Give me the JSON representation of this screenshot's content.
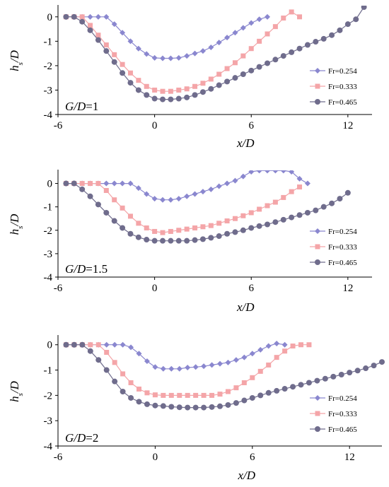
{
  "chart_data": [
    {
      "type": "line",
      "annotation": {
        "italic": "G/D",
        "rest": "=1"
      },
      "xlabel": "x/D",
      "ylabel": {
        "main": "h",
        "sub": "s",
        "rest": "/D"
      },
      "xlim": [
        -6,
        13.5
      ],
      "ylim": [
        -4,
        0.4
      ],
      "xticks": [
        -6,
        0,
        6,
        12
      ],
      "yticks": [
        0,
        -1,
        -2,
        -3,
        -4
      ],
      "series": [
        {
          "name": "Fr=0.254",
          "color": "#8a87cf",
          "marker": "diamond",
          "x": [
            -5.5,
            -5,
            -4.5,
            -4,
            -3.5,
            -3,
            -2.5,
            -2,
            -1.5,
            -1,
            -0.5,
            0,
            0.5,
            1,
            1.5,
            2,
            2.5,
            3,
            3.5,
            4,
            4.5,
            5,
            5.5,
            6,
            6.5,
            7
          ],
          "y": [
            0,
            0,
            0,
            0,
            0,
            0,
            -0.3,
            -0.65,
            -1,
            -1.3,
            -1.52,
            -1.68,
            -1.7,
            -1.7,
            -1.68,
            -1.6,
            -1.5,
            -1.4,
            -1.25,
            -1.05,
            -0.85,
            -0.65,
            -0.45,
            -0.25,
            -0.1,
            0
          ]
        },
        {
          "name": "Fr=0.333",
          "color": "#f4a5a8",
          "marker": "square",
          "x": [
            -5.5,
            -5,
            -4.5,
            -4,
            -3.5,
            -3,
            -2.5,
            -2,
            -1.5,
            -1,
            -0.5,
            0,
            0.5,
            1,
            1.5,
            2,
            2.5,
            3,
            3.5,
            4,
            4.5,
            5,
            5.5,
            6,
            6.5,
            7,
            7.5,
            8,
            8.5,
            9
          ],
          "y": [
            0,
            0,
            0,
            -0.35,
            -0.75,
            -1.15,
            -1.55,
            -1.95,
            -2.3,
            -2.6,
            -2.85,
            -3,
            -3.05,
            -3.05,
            -3,
            -2.95,
            -2.85,
            -2.72,
            -2.55,
            -2.35,
            -2.12,
            -1.88,
            -1.6,
            -1.3,
            -1,
            -0.7,
            -0.4,
            -0.05,
            0.2,
            0
          ]
        },
        {
          "name": "Fr=0.465",
          "color": "#6f6c8c",
          "marker": "circle",
          "x": [
            -5.5,
            -5,
            -4.5,
            -4,
            -3.5,
            -3,
            -2.5,
            -2,
            -1.5,
            -1,
            -0.5,
            0,
            0.5,
            1,
            1.5,
            2,
            2.5,
            3,
            3.5,
            4,
            4.5,
            5,
            5.5,
            6,
            6.5,
            7,
            7.5,
            8,
            8.5,
            9,
            9.5,
            10,
            10.5,
            11,
            11.5,
            12,
            12.5,
            13
          ],
          "y": [
            0,
            0,
            -0.2,
            -0.55,
            -0.95,
            -1.4,
            -1.85,
            -2.3,
            -2.7,
            -3,
            -3.2,
            -3.35,
            -3.38,
            -3.38,
            -3.35,
            -3.3,
            -3.2,
            -3.08,
            -2.95,
            -2.8,
            -2.65,
            -2.5,
            -2.35,
            -2.2,
            -2.05,
            -1.9,
            -1.75,
            -1.6,
            -1.45,
            -1.3,
            -1.15,
            -1.02,
            -0.9,
            -0.75,
            -0.55,
            -0.3,
            -0.1,
            0.4
          ]
        }
      ]
    },
    {
      "type": "line",
      "annotation": {
        "italic": "G/D",
        "rest": "=1.5"
      },
      "xlabel": "x/D",
      "ylabel": {
        "main": "h",
        "sub": "s",
        "rest": "/D"
      },
      "xlim": [
        -6,
        13.5
      ],
      "ylim": [
        -4,
        0.5
      ],
      "xticks": [
        -6,
        0,
        6,
        12
      ],
      "yticks": [
        0,
        -1,
        -2,
        -3,
        -4
      ],
      "series": [
        {
          "name": "Fr=0.254",
          "color": "#8a87cf",
          "marker": "diamond",
          "x": [
            -5.5,
            -5,
            -4.5,
            -4,
            -3.5,
            -3,
            -2.5,
            -2,
            -1.5,
            -1,
            -0.5,
            0,
            0.5,
            1,
            1.5,
            2,
            2.5,
            3,
            3.5,
            4,
            4.5,
            5,
            5.5,
            6,
            6.5,
            7,
            7.5,
            8,
            8.5,
            9,
            9.5
          ],
          "y": [
            0,
            0,
            0,
            0,
            0,
            0,
            0,
            0,
            0,
            -0.2,
            -0.45,
            -0.65,
            -0.7,
            -0.7,
            -0.65,
            -0.55,
            -0.45,
            -0.35,
            -0.25,
            -0.12,
            0,
            0.12,
            0.3,
            0.5,
            0.55,
            0.55,
            0.55,
            0.55,
            0.5,
            0.2,
            0
          ]
        },
        {
          "name": "Fr=0.333",
          "color": "#f4a5a8",
          "marker": "square",
          "x": [
            -5.5,
            -5,
            -4.5,
            -4,
            -3.5,
            -3,
            -2.5,
            -2,
            -1.5,
            -1,
            -0.5,
            0,
            0.5,
            1,
            1.5,
            2,
            2.5,
            3,
            3.5,
            4,
            4.5,
            5,
            5.5,
            6,
            6.5,
            7,
            7.5,
            8,
            8.5,
            9
          ],
          "y": [
            0,
            0,
            0,
            0,
            0,
            -0.3,
            -0.7,
            -1.05,
            -1.4,
            -1.7,
            -1.9,
            -2.05,
            -2.1,
            -2.05,
            -2.0,
            -1.95,
            -1.9,
            -1.85,
            -1.8,
            -1.7,
            -1.6,
            -1.5,
            -1.38,
            -1.25,
            -1.1,
            -0.95,
            -0.8,
            -0.6,
            -0.35,
            -0.15
          ]
        },
        {
          "name": "Fr=0.465",
          "color": "#6f6c8c",
          "marker": "circle",
          "x": [
            -5.5,
            -5,
            -4.5,
            -4,
            -3.5,
            -3,
            -2.5,
            -2,
            -1.5,
            -1,
            -0.5,
            0,
            0.5,
            1,
            1.5,
            2,
            2.5,
            3,
            3.5,
            4,
            4.5,
            5,
            5.5,
            6,
            6.5,
            7,
            7.5,
            8,
            8.5,
            9,
            9.5,
            10,
            10.5,
            11,
            11.5,
            12
          ],
          "y": [
            0,
            0,
            -0.25,
            -0.55,
            -0.9,
            -1.25,
            -1.6,
            -1.9,
            -2.15,
            -2.3,
            -2.4,
            -2.45,
            -2.45,
            -2.45,
            -2.45,
            -2.45,
            -2.42,
            -2.38,
            -2.32,
            -2.25,
            -2.15,
            -2.08,
            -2.0,
            -1.9,
            -1.82,
            -1.75,
            -1.65,
            -1.55,
            -1.45,
            -1.35,
            -1.25,
            -1.15,
            -1.0,
            -0.85,
            -0.65,
            -0.4
          ]
        }
      ]
    },
    {
      "type": "line",
      "annotation": {
        "italic": "G/D",
        "rest": "=2"
      },
      "xlabel": "x/D",
      "ylabel": {
        "main": "h",
        "sub": "s",
        "rest": "/D"
      },
      "xlim": [
        -6,
        14
      ],
      "ylim": [
        -4,
        0.3
      ],
      "xticks": [
        -6,
        0,
        6,
        12
      ],
      "yticks": [
        0,
        -1,
        -2,
        -3,
        -4
      ],
      "series": [
        {
          "name": "Fr=0.254",
          "color": "#8a87cf",
          "marker": "diamond",
          "x": [
            -5.5,
            -5,
            -4.5,
            -4,
            -3.5,
            -3,
            -2.5,
            -2,
            -1.5,
            -1,
            -0.5,
            0,
            0.5,
            1,
            1.5,
            2,
            2.5,
            3,
            3.5,
            4,
            4.5,
            5,
            5.5,
            6,
            6.5,
            7,
            7.5,
            8
          ],
          "y": [
            0,
            0,
            0,
            0,
            0,
            0,
            0,
            0,
            -0.1,
            -0.35,
            -0.65,
            -0.88,
            -0.95,
            -0.95,
            -0.95,
            -0.9,
            -0.88,
            -0.85,
            -0.8,
            -0.75,
            -0.7,
            -0.6,
            -0.5,
            -0.35,
            -0.2,
            -0.05,
            0.05,
            0
          ]
        },
        {
          "name": "Fr=0.333",
          "color": "#f4a5a8",
          "marker": "square",
          "x": [
            -5.5,
            -5,
            -4.5,
            -4,
            -3.5,
            -3,
            -2.5,
            -2,
            -1.5,
            -1,
            -0.5,
            0,
            0.5,
            1,
            1.5,
            2,
            2.5,
            3,
            3.5,
            4,
            4.5,
            5,
            5.5,
            6,
            6.5,
            7,
            7.5,
            8,
            8.5,
            9,
            9.5
          ],
          "y": [
            0,
            0,
            0,
            0,
            0,
            -0.3,
            -0.7,
            -1.15,
            -1.5,
            -1.75,
            -1.9,
            -1.98,
            -2.0,
            -2.0,
            -2.0,
            -2.0,
            -2.0,
            -2.0,
            -2.0,
            -1.95,
            -1.85,
            -1.7,
            -1.5,
            -1.3,
            -1.05,
            -0.8,
            -0.5,
            -0.25,
            -0.05,
            0,
            0
          ]
        },
        {
          "name": "Fr=0.465",
          "color": "#6f6c8c",
          "marker": "circle",
          "x": [
            -5.5,
            -5,
            -4.5,
            -4,
            -3.5,
            -3,
            -2.5,
            -2,
            -1.5,
            -1,
            -0.5,
            0,
            0.5,
            1,
            1.5,
            2,
            2.5,
            3,
            3.5,
            4,
            4.5,
            5,
            5.5,
            6,
            6.5,
            7,
            7.5,
            8,
            8.5,
            9,
            9.5,
            10,
            10.5,
            11,
            11.5,
            12,
            12.5,
            13,
            13.5,
            14
          ],
          "y": [
            0,
            0,
            0,
            -0.25,
            -0.6,
            -1.0,
            -1.45,
            -1.85,
            -2.1,
            -2.25,
            -2.35,
            -2.4,
            -2.42,
            -2.45,
            -2.47,
            -2.48,
            -2.48,
            -2.48,
            -2.46,
            -2.43,
            -2.38,
            -2.3,
            -2.2,
            -2.1,
            -2.0,
            -1.9,
            -1.82,
            -1.74,
            -1.66,
            -1.58,
            -1.5,
            -1.42,
            -1.34,
            -1.26,
            -1.18,
            -1.1,
            -1.02,
            -0.93,
            -0.82,
            -0.68
          ]
        }
      ]
    }
  ]
}
